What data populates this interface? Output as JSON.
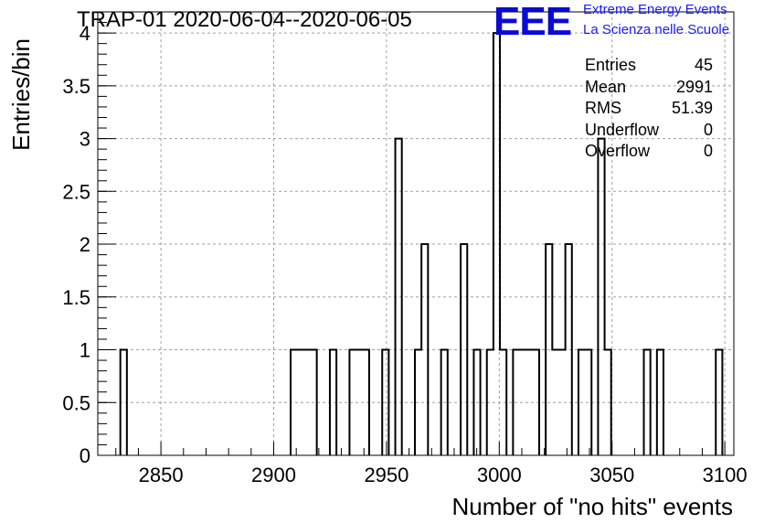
{
  "title": "TRAP-01 2020-06-04--2020-06-05",
  "logo": {
    "mark": "EEE",
    "line1": "Extreme Energy Events",
    "line2": "La Scienza nelle Scuole"
  },
  "stats": [
    {
      "label": "Entries",
      "value": "45"
    },
    {
      "label": "Mean",
      "value": "2991"
    },
    {
      "label": "RMS",
      "value": "51.39"
    },
    {
      "label": "Underflow",
      "value": "0"
    },
    {
      "label": "Overflow",
      "value": "0"
    }
  ],
  "chart_data": {
    "type": "histogram",
    "xlabel": "Number of \"no hits\" events",
    "ylabel": "Entries/bin",
    "xlim": [
      2822,
      3104
    ],
    "ylim": [
      0,
      4.2
    ],
    "xticks": [
      2850,
      2900,
      2950,
      3000,
      3050,
      3100
    ],
    "yticks": [
      0,
      0.5,
      1,
      1.5,
      2,
      2.5,
      3,
      3.5,
      4
    ],
    "ytick_labels": [
      "0",
      "0.5",
      "1",
      "1.5",
      "2",
      "2.5",
      "3",
      "3.5",
      "4"
    ],
    "bin_width": 2.9,
    "grid": true,
    "bins": [
      {
        "x": 2832.0,
        "count": 1
      },
      {
        "x": 2907.5,
        "count": 1
      },
      {
        "x": 2910.4,
        "count": 1
      },
      {
        "x": 2913.3,
        "count": 1
      },
      {
        "x": 2916.2,
        "count": 1
      },
      {
        "x": 2924.9,
        "count": 1
      },
      {
        "x": 2933.6,
        "count": 1
      },
      {
        "x": 2936.5,
        "count": 1
      },
      {
        "x": 2939.4,
        "count": 1
      },
      {
        "x": 2948.1,
        "count": 1
      },
      {
        "x": 2953.9,
        "count": 3
      },
      {
        "x": 2962.6,
        "count": 1
      },
      {
        "x": 2965.5,
        "count": 2
      },
      {
        "x": 2974.2,
        "count": 1
      },
      {
        "x": 2982.9,
        "count": 2
      },
      {
        "x": 2988.7,
        "count": 1
      },
      {
        "x": 2994.5,
        "count": 1
      },
      {
        "x": 2997.4,
        "count": 4
      },
      {
        "x": 3000.3,
        "count": 1
      },
      {
        "x": 3006.1,
        "count": 1
      },
      {
        "x": 3009.0,
        "count": 1
      },
      {
        "x": 3011.9,
        "count": 1
      },
      {
        "x": 3014.8,
        "count": 1
      },
      {
        "x": 3020.6,
        "count": 2
      },
      {
        "x": 3023.5,
        "count": 1
      },
      {
        "x": 3026.4,
        "count": 1
      },
      {
        "x": 3029.3,
        "count": 2
      },
      {
        "x": 3035.1,
        "count": 1
      },
      {
        "x": 3038.0,
        "count": 1
      },
      {
        "x": 3043.8,
        "count": 3
      },
      {
        "x": 3046.7,
        "count": 1
      },
      {
        "x": 3064.1,
        "count": 1
      },
      {
        "x": 3069.9,
        "count": 1
      },
      {
        "x": 3096.0,
        "count": 1
      }
    ]
  }
}
